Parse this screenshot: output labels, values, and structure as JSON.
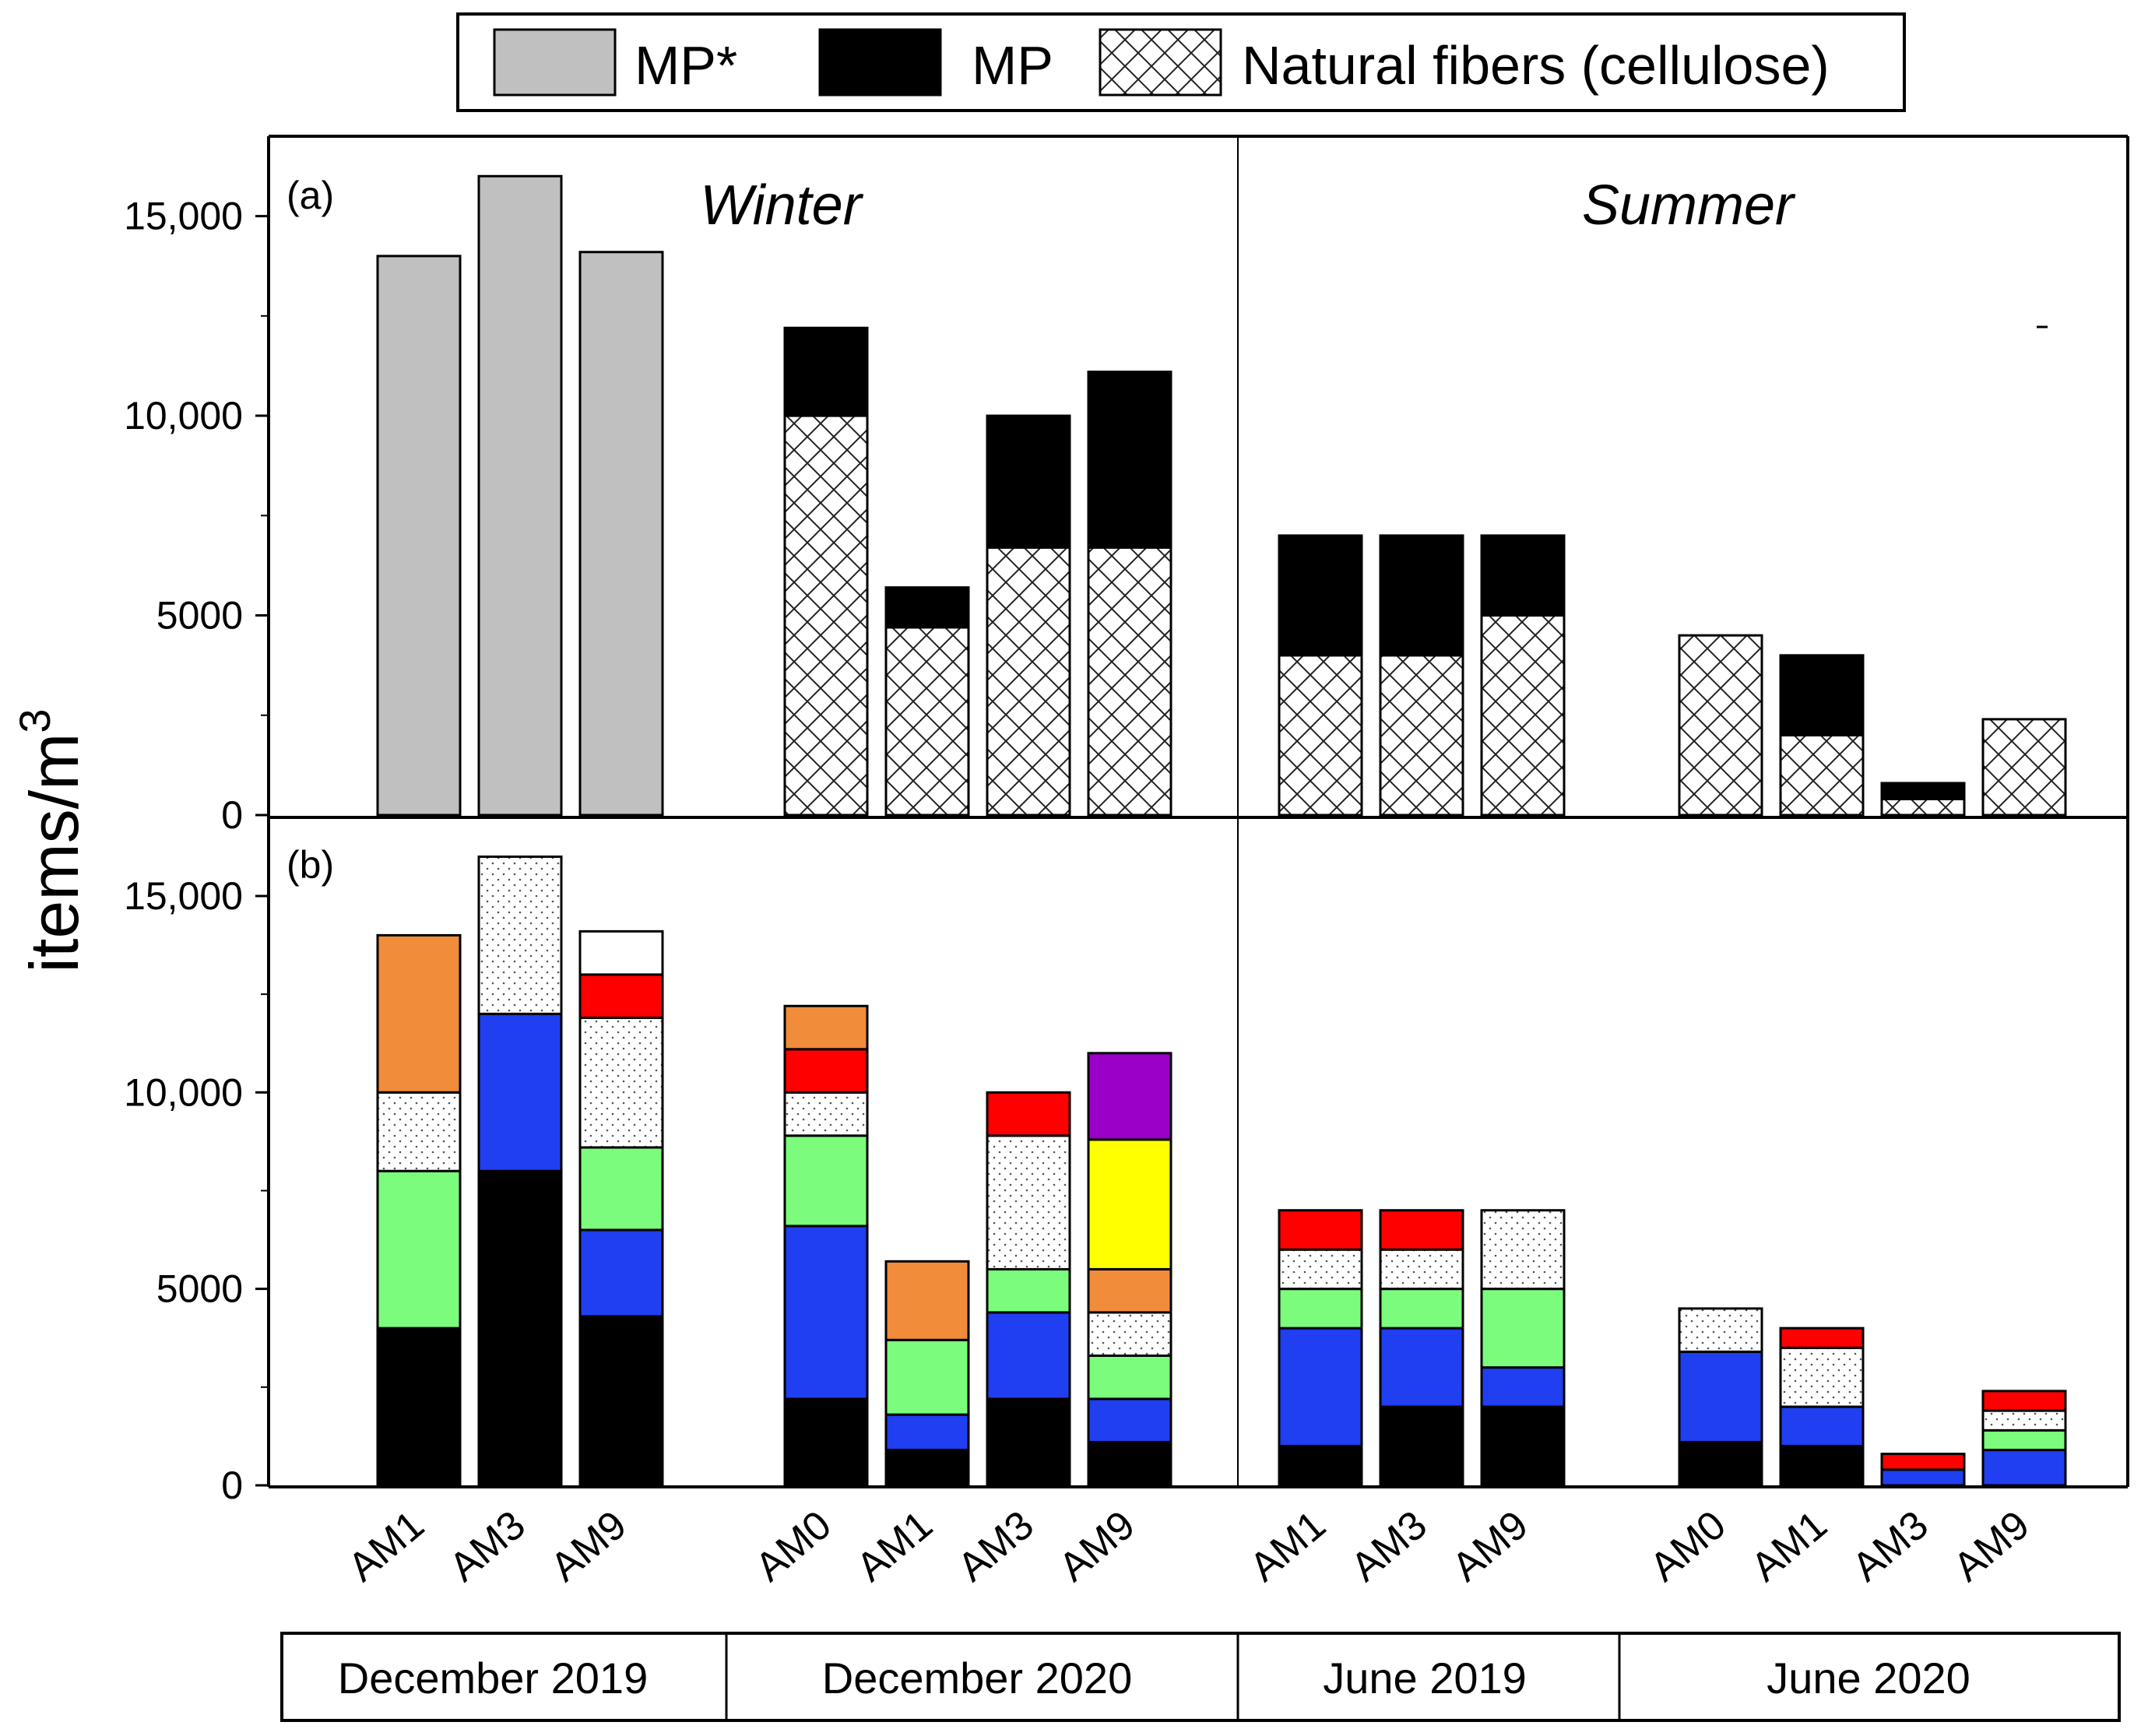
{
  "chart_data": {
    "type": "stacked-bar",
    "ylabel": "items/m",
    "ylabel_superscript": "3",
    "ylim": [
      0,
      17000
    ],
    "yticks": [
      {
        "value": 0,
        "label": "0"
      },
      {
        "value": 5000,
        "label": "5000"
      },
      {
        "value": 10000,
        "label": "10,000"
      },
      {
        "value": 15000,
        "label": "15,000"
      }
    ],
    "legend": [
      {
        "key": "mpstar",
        "label": "MP*",
        "fill": "#c0c0c0"
      },
      {
        "key": "mp",
        "label": "MP",
        "fill": "#000000"
      },
      {
        "key": "fiber",
        "label": "Natural fibers (cellulose)",
        "fill": "crosshatch"
      }
    ],
    "seasons": [
      "Winter",
      "Summer"
    ],
    "periods": [
      "December 2019",
      "December 2020",
      "June 2019",
      "June 2020"
    ],
    "panels": [
      {
        "label": "(a)",
        "bars": [
          {
            "period": "December 2019",
            "station": "AM1",
            "segments": [
              {
                "type": "mpstar",
                "value": 14000
              }
            ]
          },
          {
            "period": "December 2019",
            "station": "AM3",
            "segments": [
              {
                "type": "mpstar",
                "value": 16000
              }
            ]
          },
          {
            "period": "December 2019",
            "station": "AM9",
            "segments": [
              {
                "type": "mpstar",
                "value": 14100
              }
            ]
          },
          {
            "period": "December 2020",
            "station": "AM0",
            "segments": [
              {
                "type": "fiber",
                "value": 10000
              },
              {
                "type": "mp",
                "value": 2200
              }
            ]
          },
          {
            "period": "December 2020",
            "station": "AM1",
            "segments": [
              {
                "type": "fiber",
                "value": 4700
              },
              {
                "type": "mp",
                "value": 1000
              }
            ]
          },
          {
            "period": "December 2020",
            "station": "AM3",
            "segments": [
              {
                "type": "fiber",
                "value": 6700
              },
              {
                "type": "mp",
                "value": 3300
              }
            ]
          },
          {
            "period": "December 2020",
            "station": "AM9",
            "segments": [
              {
                "type": "fiber",
                "value": 6700
              },
              {
                "type": "mp",
                "value": 4400
              }
            ]
          },
          {
            "period": "June 2019",
            "station": "AM1",
            "segments": [
              {
                "type": "fiber",
                "value": 4000
              },
              {
                "type": "mp",
                "value": 3000
              }
            ]
          },
          {
            "period": "June 2019",
            "station": "AM3",
            "segments": [
              {
                "type": "fiber",
                "value": 4000
              },
              {
                "type": "mp",
                "value": 3000
              }
            ]
          },
          {
            "period": "June 2019",
            "station": "AM9",
            "segments": [
              {
                "type": "fiber",
                "value": 5000
              },
              {
                "type": "mp",
                "value": 2000
              }
            ]
          },
          {
            "period": "June 2020",
            "station": "AM0",
            "segments": [
              {
                "type": "fiber",
                "value": 4500
              }
            ]
          },
          {
            "period": "June 2020",
            "station": "AM1",
            "segments": [
              {
                "type": "fiber",
                "value": 2000
              },
              {
                "type": "mp",
                "value": 2000
              }
            ]
          },
          {
            "period": "June 2020",
            "station": "AM3",
            "segments": [
              {
                "type": "fiber",
                "value": 400
              },
              {
                "type": "mp",
                "value": 400
              }
            ]
          },
          {
            "period": "June 2020",
            "station": "AM9",
            "segments": [
              {
                "type": "fiber",
                "value": 2400
              }
            ]
          }
        ]
      },
      {
        "label": "(b)",
        "bars": [
          {
            "period": "December 2019",
            "station": "AM1",
            "segments": [
              {
                "color": "#000000",
                "value": 4000
              },
              {
                "color": "#7cfc7c",
                "value": 4000
              },
              {
                "color": "dots",
                "value": 2000
              },
              {
                "color": "#f08c3a",
                "value": 4000
              }
            ]
          },
          {
            "period": "December 2019",
            "station": "AM3",
            "segments": [
              {
                "color": "#000000",
                "value": 8000
              },
              {
                "color": "#1f3ff0",
                "value": 4000
              },
              {
                "color": "dots",
                "value": 4000
              }
            ]
          },
          {
            "period": "December 2019",
            "station": "AM9",
            "segments": [
              {
                "color": "#000000",
                "value": 4300
              },
              {
                "color": "#1f3ff0",
                "value": 2200
              },
              {
                "color": "#7cfc7c",
                "value": 2100
              },
              {
                "color": "dots",
                "value": 3300
              },
              {
                "color": "#ff0000",
                "value": 1100
              },
              {
                "color": "#ffffff",
                "value": 1100
              }
            ]
          },
          {
            "period": "December 2020",
            "station": "AM0",
            "segments": [
              {
                "color": "#000000",
                "value": 2200
              },
              {
                "color": "#1f3ff0",
                "value": 4400
              },
              {
                "color": "#7cfc7c",
                "value": 2300
              },
              {
                "color": "dots",
                "value": 1100
              },
              {
                "color": "#ff0000",
                "value": 1100
              },
              {
                "color": "#f08c3a",
                "value": 1100
              }
            ]
          },
          {
            "period": "December 2020",
            "station": "AM1",
            "segments": [
              {
                "color": "#000000",
                "value": 900
              },
              {
                "color": "#1f3ff0",
                "value": 900
              },
              {
                "color": "#7cfc7c",
                "value": 1900
              },
              {
                "color": "#f08c3a",
                "value": 2000
              }
            ]
          },
          {
            "period": "December 2020",
            "station": "AM3",
            "segments": [
              {
                "color": "#000000",
                "value": 2200
              },
              {
                "color": "#1f3ff0",
                "value": 2200
              },
              {
                "color": "#7cfc7c",
                "value": 1100
              },
              {
                "color": "dots",
                "value": 3400
              },
              {
                "color": "#ff0000",
                "value": 1100
              }
            ]
          },
          {
            "period": "December 2020",
            "station": "AM9",
            "segments": [
              {
                "color": "#000000",
                "value": 1100
              },
              {
                "color": "#1f3ff0",
                "value": 1100
              },
              {
                "color": "#7cfc7c",
                "value": 1100
              },
              {
                "color": "dots",
                "value": 1100
              },
              {
                "color": "#f08c3a",
                "value": 1100
              },
              {
                "color": "#ffff00",
                "value": 3300
              },
              {
                "color": "#9a00c8",
                "value": 2200
              }
            ]
          },
          {
            "period": "June 2019",
            "station": "AM1",
            "segments": [
              {
                "color": "#000000",
                "value": 1000
              },
              {
                "color": "#1f3ff0",
                "value": 3000
              },
              {
                "color": "#7cfc7c",
                "value": 1000
              },
              {
                "color": "dots",
                "value": 1000
              },
              {
                "color": "#ff0000",
                "value": 1000
              }
            ]
          },
          {
            "period": "June 2019",
            "station": "AM3",
            "segments": [
              {
                "color": "#000000",
                "value": 2000
              },
              {
                "color": "#1f3ff0",
                "value": 2000
              },
              {
                "color": "#7cfc7c",
                "value": 1000
              },
              {
                "color": "dots",
                "value": 1000
              },
              {
                "color": "#ff0000",
                "value": 1000
              }
            ]
          },
          {
            "period": "June 2019",
            "station": "AM9",
            "segments": [
              {
                "color": "#000000",
                "value": 2000
              },
              {
                "color": "#1f3ff0",
                "value": 1000
              },
              {
                "color": "#7cfc7c",
                "value": 2000
              },
              {
                "color": "dots",
                "value": 2000
              }
            ]
          },
          {
            "period": "June 2020",
            "station": "AM0",
            "segments": [
              {
                "color": "#000000",
                "value": 1100
              },
              {
                "color": "#1f3ff0",
                "value": 2300
              },
              {
                "color": "dots",
                "value": 1100
              }
            ]
          },
          {
            "period": "June 2020",
            "station": "AM1",
            "segments": [
              {
                "color": "#000000",
                "value": 1000
              },
              {
                "color": "#1f3ff0",
                "value": 1000
              },
              {
                "color": "dots",
                "value": 1500
              },
              {
                "color": "#ff0000",
                "value": 500
              }
            ]
          },
          {
            "period": "June 2020",
            "station": "AM3",
            "segments": [
              {
                "color": "#1f3ff0",
                "value": 400
              },
              {
                "color": "#ff0000",
                "value": 400
              }
            ]
          },
          {
            "period": "June 2020",
            "station": "AM9",
            "segments": [
              {
                "color": "#1f3ff0",
                "value": 900
              },
              {
                "color": "#7cfc7c",
                "value": 500
              },
              {
                "color": "dots",
                "value": 500
              },
              {
                "color": "#ff0000",
                "value": 500
              }
            ]
          }
        ]
      }
    ]
  }
}
